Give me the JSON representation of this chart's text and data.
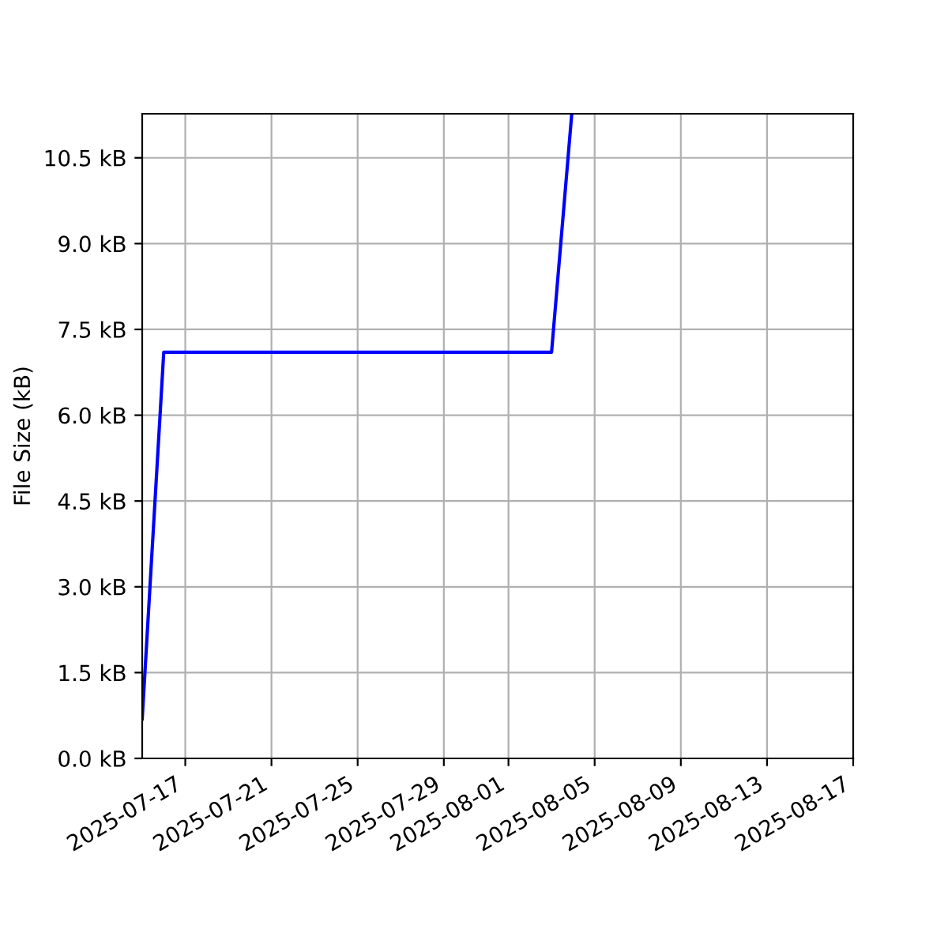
{
  "chart_data": {
    "type": "line",
    "ylabel": "File Size (kB)",
    "x": [
      "2025-07-15",
      "2025-07-16",
      "2025-08-03",
      "2025-08-03T22:30"
    ],
    "series": [
      {
        "color": "#0000ff",
        "values": [
          0.69,
          7.1,
          7.1,
          11.27
        ]
      }
    ],
    "xlim": [
      "2025-07-15",
      "2025-08-17"
    ],
    "xticks": [
      "2025-07-17",
      "2025-07-21",
      "2025-07-25",
      "2025-07-29",
      "2025-08-01",
      "2025-08-05",
      "2025-08-09",
      "2025-08-13",
      "2025-08-17"
    ],
    "ylim": [
      0,
      11.27
    ],
    "yticks": [
      {
        "value": 0,
        "label": "0.0 kB"
      },
      {
        "value": 1.5,
        "label": "1.5 kB"
      },
      {
        "value": 3,
        "label": "3.0 kB"
      },
      {
        "value": 4.5,
        "label": "4.5 kB"
      },
      {
        "value": 6,
        "label": "6.0 kB"
      },
      {
        "value": 7.5,
        "label": "7.5 kB"
      },
      {
        "value": 9,
        "label": "9.0 kB"
      },
      {
        "value": 10.5,
        "label": "10.5 kB"
      }
    ],
    "grid": true,
    "line_style": "solid",
    "marker": "none"
  }
}
